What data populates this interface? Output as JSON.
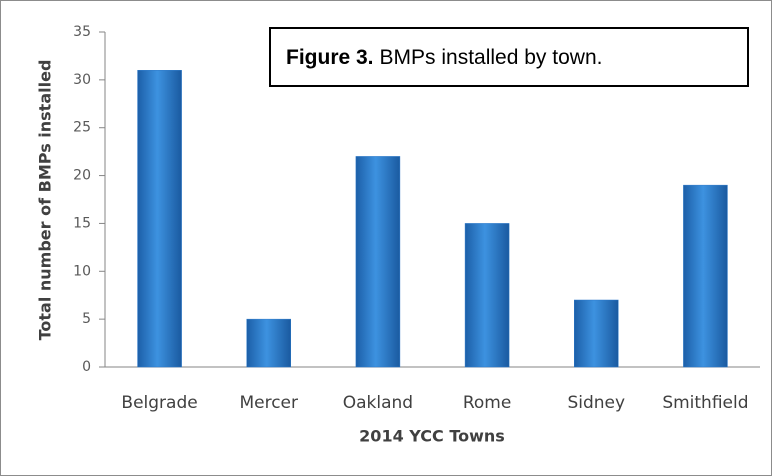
{
  "chart_data": {
    "type": "bar",
    "title_label": "Figure 3.",
    "title": "BMPs installed by town.",
    "x_label": "2014 YCC Towns",
    "y_label": "Total number of BMPs installed",
    "categories": [
      "Belgrade",
      "Mercer",
      "Oakland",
      "Rome",
      "Sidney",
      "Smithfield"
    ],
    "values": [
      31,
      5,
      22,
      15,
      7,
      19
    ],
    "color": "#2a78c9",
    "ylim": [
      0,
      35
    ],
    "yticks": [
      0,
      5,
      10,
      15,
      20,
      25,
      30,
      35
    ],
    "grid": false
  }
}
